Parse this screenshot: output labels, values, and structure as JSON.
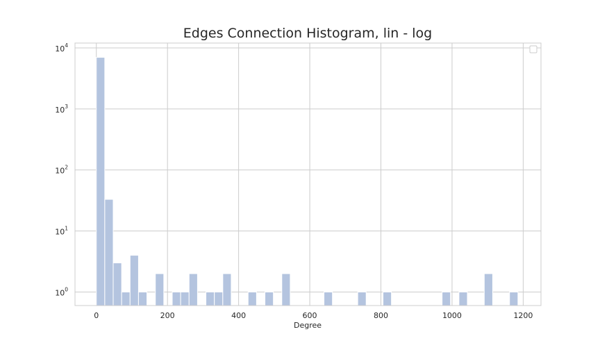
{
  "colors": {
    "bar_fill": "#b4c4df",
    "bar_edge": "#ffffff",
    "grid": "#cccccc",
    "frame": "#cccccc",
    "text": "#262626"
  },
  "chart_data": {
    "type": "bar",
    "title": "Edges Connection Histogram, lin - log",
    "xlabel": "Degree",
    "ylabel": "",
    "xscale": "linear",
    "yscale": "log",
    "xlim": [
      -60,
      1250
    ],
    "ylim": [
      0.6,
      12000
    ],
    "grid": true,
    "legend": "top-right (empty)",
    "xticks": [
      0,
      200,
      400,
      600,
      800,
      1000,
      1200
    ],
    "xtick_labels": [
      "0",
      "200",
      "400",
      "600",
      "800",
      "1000",
      "1200"
    ],
    "yticks": [
      1,
      10,
      100,
      1000,
      10000
    ],
    "ytick_labels": [
      {
        "base": "10",
        "exp": "0"
      },
      {
        "base": "10",
        "exp": "1"
      },
      {
        "base": "10",
        "exp": "2"
      },
      {
        "base": "10",
        "exp": "3"
      },
      {
        "base": "10",
        "exp": "4"
      }
    ],
    "bin_width": 23.7,
    "bins": [
      {
        "x0": 0,
        "count": 7000
      },
      {
        "x0": 23.7,
        "count": 33
      },
      {
        "x0": 47.4,
        "count": 3
      },
      {
        "x0": 71.1,
        "count": 1
      },
      {
        "x0": 94.8,
        "count": 4
      },
      {
        "x0": 118.5,
        "count": 1
      },
      {
        "x0": 165.9,
        "count": 2
      },
      {
        "x0": 213.3,
        "count": 1
      },
      {
        "x0": 237.0,
        "count": 1
      },
      {
        "x0": 260.7,
        "count": 2
      },
      {
        "x0": 308.1,
        "count": 1
      },
      {
        "x0": 331.8,
        "count": 1
      },
      {
        "x0": 355.5,
        "count": 2
      },
      {
        "x0": 426.6,
        "count": 1
      },
      {
        "x0": 474.0,
        "count": 1
      },
      {
        "x0": 521.4,
        "count": 2
      },
      {
        "x0": 640.0,
        "count": 1
      },
      {
        "x0": 734.8,
        "count": 1
      },
      {
        "x0": 805.9,
        "count": 1
      },
      {
        "x0": 972.0,
        "count": 1
      },
      {
        "x0": 1019.4,
        "count": 1
      },
      {
        "x0": 1090.5,
        "count": 2
      },
      {
        "x0": 1161.6,
        "count": 1
      }
    ]
  }
}
